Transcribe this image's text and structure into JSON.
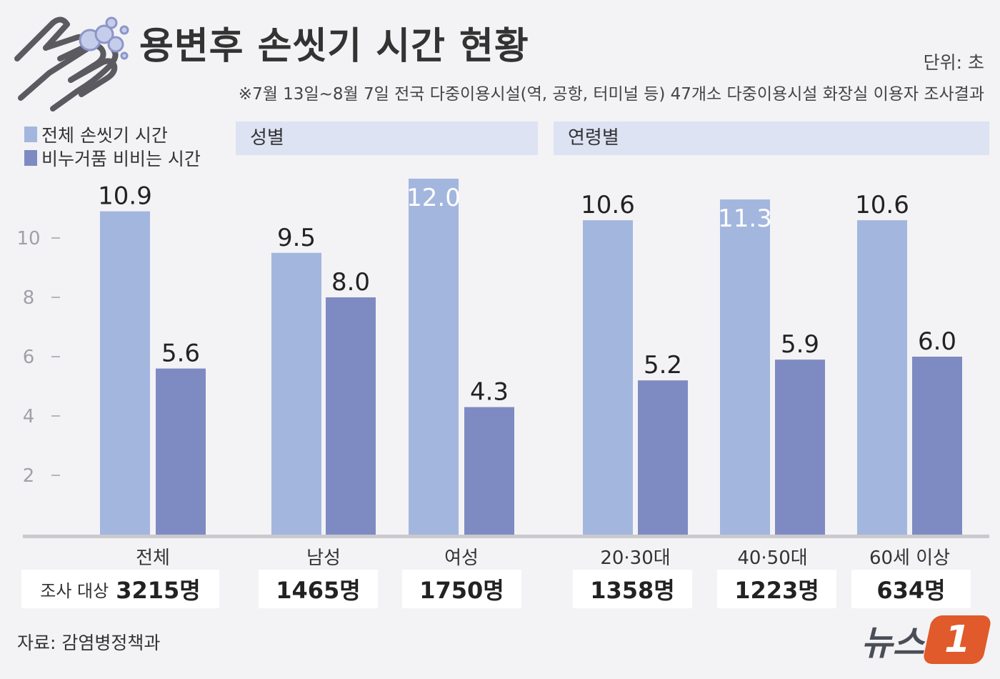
{
  "title": "용변후 손씻기 시간 현황",
  "unit": "단위: 초",
  "note": "※7월 13일~8월 7일 전국 다중이용시설(역, 공항, 터미널 등) 47개소 다중이용시설 화장실 이용자 조사결과",
  "legend": {
    "total_label": "전체 손씻기 시간",
    "soap_label": "비누거품 비비는 시간"
  },
  "groups": {
    "gender": "성별",
    "age": "연령별"
  },
  "survey": {
    "prefix": "조사 대상",
    "counts": [
      "3215명",
      "1465명",
      "1750명",
      "1358명",
      "1223명",
      "634명"
    ]
  },
  "source": "자료: 감염병정책과",
  "logo": {
    "text": "뉴스",
    "badge": "1"
  },
  "colors": {
    "total": "#a3b6de",
    "soap": "#7e8bc2",
    "band": "#dde3f3",
    "accent": "#e05a2b"
  },
  "chart_data": {
    "type": "bar",
    "categories": [
      "전체",
      "남성",
      "여성",
      "20·30대",
      "40·50대",
      "60세 이상"
    ],
    "series": [
      {
        "name": "전체 손씻기 시간",
        "values": [
          10.9,
          9.5,
          12.0,
          10.6,
          11.3,
          10.6
        ]
      },
      {
        "name": "비누거품 비비는 시간",
        "values": [
          5.6,
          8.0,
          4.3,
          5.2,
          5.9,
          6.0
        ]
      }
    ],
    "value_labels": [
      [
        "10.9",
        "9.5",
        "12.0",
        "10.6",
        "11.3",
        "10.6"
      ],
      [
        "5.6",
        "8.0",
        "4.3",
        "5.2",
        "5.9",
        "6.0"
      ]
    ],
    "y_ticks": [
      2,
      4,
      6,
      8,
      10
    ],
    "ylim": [
      0,
      12
    ],
    "grid": false,
    "legend_position": "top-left"
  }
}
